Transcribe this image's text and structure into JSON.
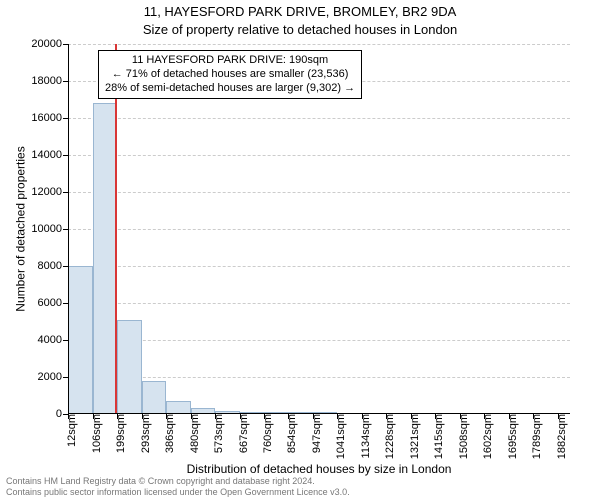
{
  "header": {
    "title": "11, HAYESFORD PARK DRIVE, BROMLEY, BR2 9DA",
    "subtitle": "Size of property relative to detached houses in London"
  },
  "chart": {
    "type": "histogram",
    "ylabel": "Number of detached properties",
    "xlabel": "Distribution of detached houses by size in London",
    "ylim": [
      0,
      20000
    ],
    "ytick_step": 2000,
    "grid_color": "#cccccc",
    "axis_color": "#000000",
    "background_color": "#ffffff",
    "bar_fill": "#d6e3ef",
    "bar_border": "#9ab6d1",
    "highlight_color": "#d93636",
    "highlight_x": 190,
    "x_min": 12,
    "x_range": 1917,
    "xticks": [
      {
        "pos": 12,
        "label": "12sqm"
      },
      {
        "pos": 106,
        "label": "106sqm"
      },
      {
        "pos": 199,
        "label": "199sqm"
      },
      {
        "pos": 293,
        "label": "293sqm"
      },
      {
        "pos": 386,
        "label": "386sqm"
      },
      {
        "pos": 480,
        "label": "480sqm"
      },
      {
        "pos": 573,
        "label": "573sqm"
      },
      {
        "pos": 667,
        "label": "667sqm"
      },
      {
        "pos": 760,
        "label": "760sqm"
      },
      {
        "pos": 854,
        "label": "854sqm"
      },
      {
        "pos": 947,
        "label": "947sqm"
      },
      {
        "pos": 1041,
        "label": "1041sqm"
      },
      {
        "pos": 1134,
        "label": "1134sqm"
      },
      {
        "pos": 1228,
        "label": "1228sqm"
      },
      {
        "pos": 1321,
        "label": "1321sqm"
      },
      {
        "pos": 1415,
        "label": "1415sqm"
      },
      {
        "pos": 1508,
        "label": "1508sqm"
      },
      {
        "pos": 1602,
        "label": "1602sqm"
      },
      {
        "pos": 1695,
        "label": "1695sqm"
      },
      {
        "pos": 1789,
        "label": "1789sqm"
      },
      {
        "pos": 1882,
        "label": "1882sqm"
      }
    ],
    "bars": [
      {
        "x0": 12,
        "x1": 106,
        "y": 8000
      },
      {
        "x0": 106,
        "x1": 199,
        "y": 16800
      },
      {
        "x0": 199,
        "x1": 293,
        "y": 5100
      },
      {
        "x0": 293,
        "x1": 386,
        "y": 1800
      },
      {
        "x0": 386,
        "x1": 480,
        "y": 700
      },
      {
        "x0": 480,
        "x1": 573,
        "y": 300
      },
      {
        "x0": 573,
        "x1": 667,
        "y": 150
      },
      {
        "x0": 667,
        "x1": 760,
        "y": 100
      },
      {
        "x0": 760,
        "x1": 854,
        "y": 60
      },
      {
        "x0": 854,
        "x1": 947,
        "y": 40
      },
      {
        "x0": 947,
        "x1": 1041,
        "y": 30
      }
    ]
  },
  "annotation": {
    "line1": "11 HAYESFORD PARK DRIVE: 190sqm",
    "line2": "← 71% of detached houses are smaller (23,536)",
    "line3": "28% of semi-detached houses are larger (9,302) →"
  },
  "footer": {
    "line1": "Contains HM Land Registry data © Crown copyright and database right 2024.",
    "line2": "Contains public sector information licensed under the Open Government Licence v3.0."
  }
}
